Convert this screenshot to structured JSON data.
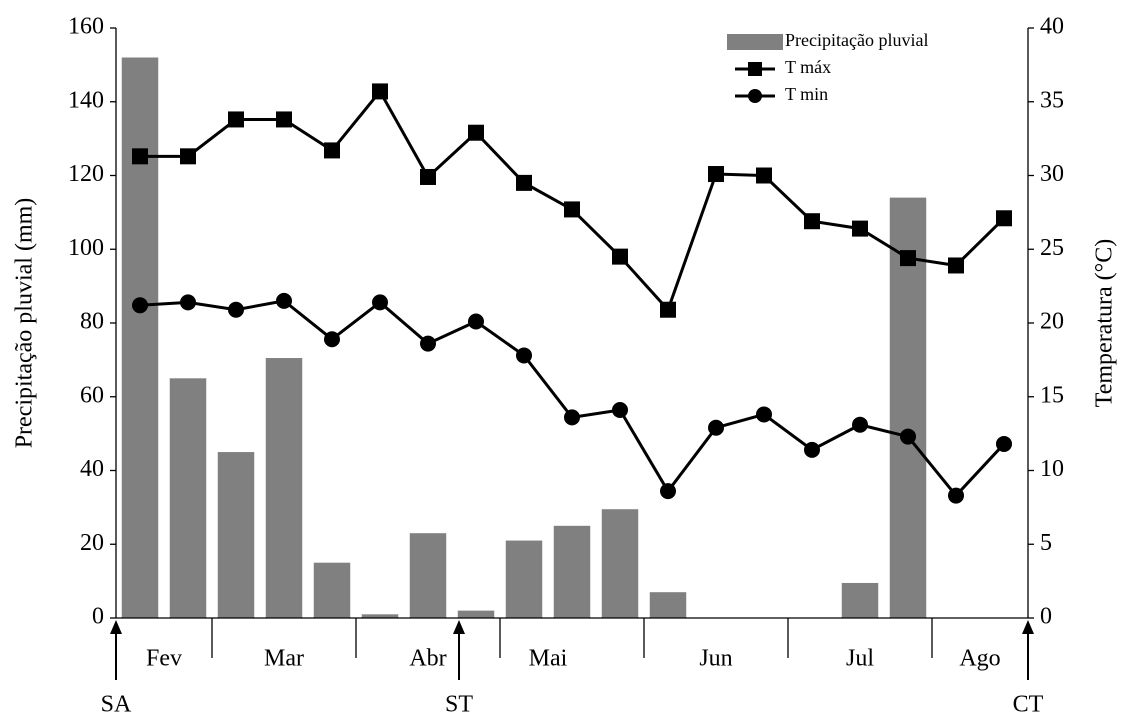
{
  "chart_data": {
    "type": "bar",
    "y_label": "Precipitação pluvial (mm)",
    "y2_label": "Temperatura (°C)",
    "categories": [
      null,
      null,
      null,
      null,
      null,
      null,
      null,
      null,
      null,
      null,
      null,
      null,
      null,
      null,
      null,
      null,
      null,
      null,
      null
    ],
    "months": [
      "Fev",
      "Mar",
      "Abr",
      "Mai",
      "Jun",
      "Jul",
      "Ago"
    ],
    "markers": [
      "SA",
      "ST",
      "CT"
    ],
    "ylim": [
      0,
      160
    ],
    "yticks": [
      0,
      20,
      40,
      60,
      80,
      100,
      120,
      140,
      160
    ],
    "y2lim": [
      0,
      40
    ],
    "y2ticks": [
      0,
      5,
      10,
      15,
      20,
      25,
      30,
      35,
      40
    ],
    "grid": false,
    "legend": "top-right",
    "series": [
      {
        "name": "Precipitação pluvial",
        "type": "bar",
        "color": "#808080",
        "values": [
          152,
          65,
          45,
          70.5,
          15,
          1,
          23,
          2,
          21,
          25,
          29.5,
          7,
          0,
          0,
          0,
          9.5,
          114,
          0,
          0
        ]
      },
      {
        "name": "T máx",
        "type": "line",
        "marker": "square",
        "color": "#000000",
        "axis": "y2",
        "values": [
          31.3,
          31.3,
          33.8,
          33.8,
          31.7,
          35.7,
          29.9,
          32.9,
          29.5,
          27.7,
          24.5,
          20.9,
          30.1,
          30.0,
          26.9,
          26.4,
          24.4,
          23.9,
          27.1
        ]
      },
      {
        "name": "T min",
        "type": "line",
        "marker": "circle",
        "color": "#000000",
        "axis": "y2",
        "values": [
          21.2,
          21.4,
          20.9,
          21.5,
          18.9,
          21.4,
          18.6,
          20.1,
          17.8,
          13.6,
          14.1,
          8.6,
          12.9,
          13.8,
          11.4,
          13.1,
          12.3,
          8.3,
          11.8
        ]
      }
    ]
  }
}
